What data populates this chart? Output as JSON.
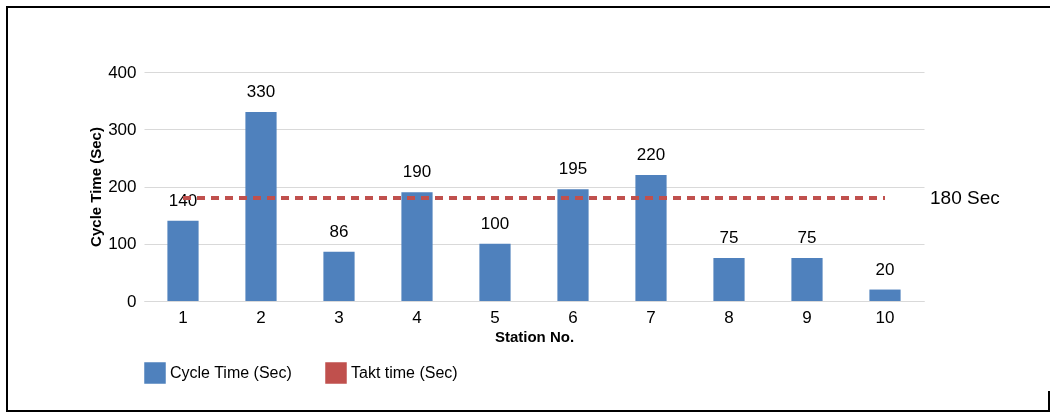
{
  "chart_data": {
    "type": "bar",
    "xlabel": "Station No.",
    "ylabel": "Cycle Time (Sec)",
    "categories": [
      "1",
      "2",
      "3",
      "4",
      "5",
      "6",
      "7",
      "8",
      "9",
      "10"
    ],
    "series": [
      {
        "name": "Cycle Time (Sec)",
        "color": "#4f81bd",
        "values": [
          140,
          330,
          86,
          190,
          100,
          195,
          220,
          75,
          75,
          20
        ],
        "value_labels": [
          "140",
          "330",
          "86",
          "190",
          "100",
          "195",
          "220",
          "75",
          "75",
          "20"
        ]
      },
      {
        "name": "Takt time (Sec)",
        "type": "line",
        "color": "#c0504d",
        "line_style": "dashed",
        "values": [
          180,
          180,
          180,
          180,
          180,
          180,
          180,
          180,
          180,
          180
        ]
      }
    ],
    "ylim": [
      0,
      400
    ],
    "yticks": [
      0,
      100,
      200,
      300,
      400
    ],
    "grid": "y",
    "legend": "bottom",
    "annotations": [
      {
        "text": "180 Sec",
        "x": "10",
        "y": 180
      }
    ]
  }
}
